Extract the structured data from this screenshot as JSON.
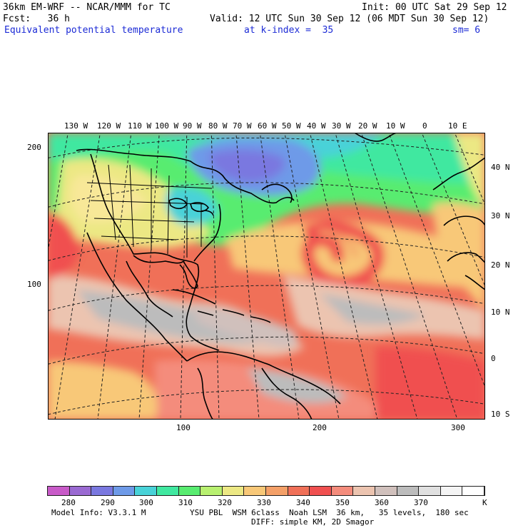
{
  "header": {
    "model_title": "36km EM-WRF -- NCAR/MMM for TC",
    "init": "Init: 00 UTC Sat 29 Sep 12",
    "forecast": "Fcst:   36 h",
    "valid": "Valid: 12 UTC Sun 30 Sep 12 (06 MDT Sun 30 Sep 12)",
    "field_name": "Equivalent potential temperature",
    "level": "at k-index =  35",
    "smoothing": "sm= 6"
  },
  "map": {
    "top_longitude_labels": [
      "130 W",
      "120 W",
      "110 W",
      "100 W",
      "90 W",
      "80 W",
      "70 W",
      "60 W",
      "50 W",
      "40 W",
      "30 W",
      "20 W",
      "10 W",
      "0",
      "10 E"
    ],
    "right_latitude_labels": [
      "40 N",
      "30 N",
      "20 N",
      "10 N",
      "0",
      "10 S"
    ],
    "left_grid_labels": [
      "200",
      "100"
    ],
    "bottom_grid_labels": [
      "100",
      "200",
      "300"
    ],
    "colors": {
      "land_outline": "#000000",
      "grid_dash": "#222222"
    }
  },
  "colorbar": {
    "labels": [
      "280",
      "290",
      "300",
      "310",
      "320",
      "330",
      "340",
      "350",
      "360",
      "370"
    ],
    "unit": "K",
    "colors": [
      "#c85ac8",
      "#9a6ad2",
      "#7a78e0",
      "#6e9ae8",
      "#48d2d8",
      "#40e8a0",
      "#58ec70",
      "#b8f070",
      "#ece884",
      "#f8c878",
      "#f4a068",
      "#f07058",
      "#f05050",
      "#f48c7c",
      "#ecc4b0",
      "#d0c0bc",
      "#bcbcbc",
      "#e0e0e0",
      "#f4f4f4",
      "#ffffff"
    ]
  },
  "footer": {
    "model_info": "Model Info: V3.3.1 M",
    "physics": "YSU PBL  WSM 6class  Noah LSM  36 km,   35 levels,  180 sec",
    "diffusion": "DIFF: simple KM, 2D Smagor"
  }
}
